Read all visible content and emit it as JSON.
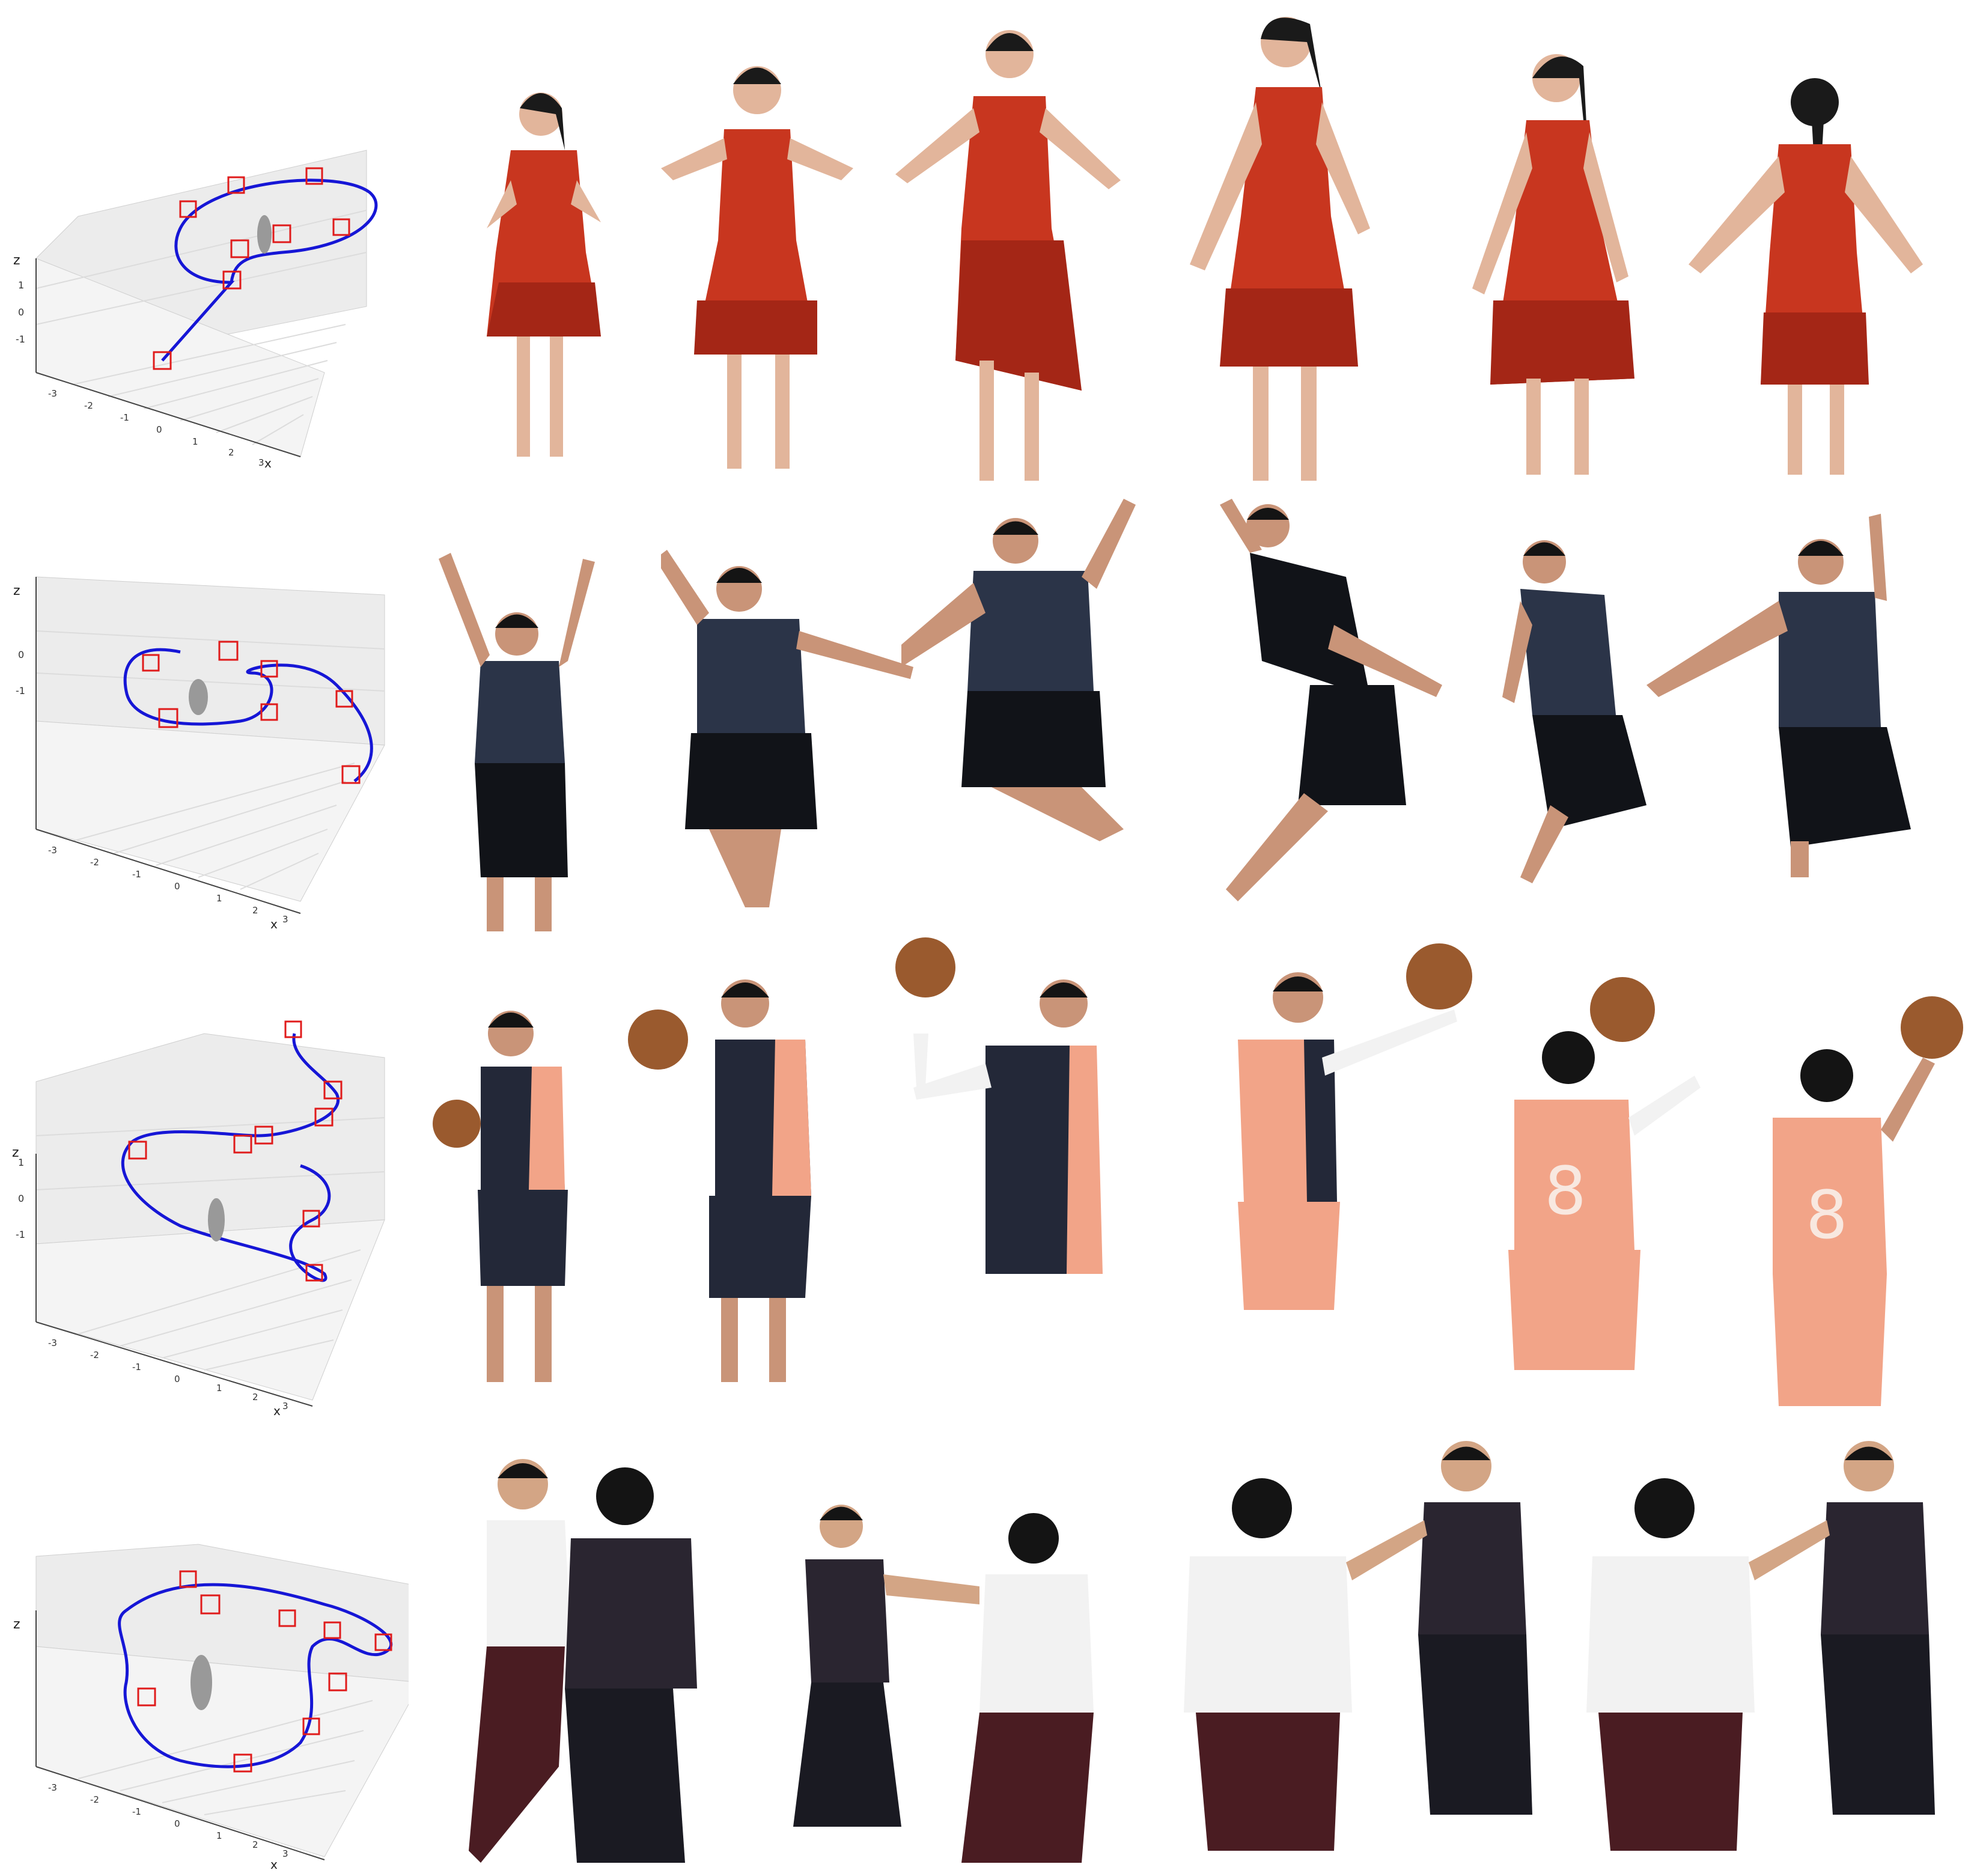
{
  "figure": {
    "rows": [
      {
        "id": "row-1",
        "subject": "woman in red dress dancing",
        "plot": {
          "axis_x_label": "x",
          "axis_z_label": "z",
          "z_ticks": [
            "1",
            "0",
            "-1"
          ],
          "x_ticks": [
            "-3",
            "-2",
            "-1",
            "0",
            "1",
            "2",
            "3"
          ]
        },
        "frame_count": 6,
        "colors": {
          "garment": "#c8361f",
          "garment_shade": "#a42616",
          "skin": "#e2b59b",
          "hair": "#1a1a1a"
        }
      },
      {
        "id": "row-2",
        "subject": "man in dark jersey jumping",
        "plot": {
          "axis_x_label": "x",
          "axis_z_label": "z",
          "z_ticks": [
            "0",
            "-1"
          ],
          "x_ticks": [
            "-3",
            "-2",
            "-1",
            "0",
            "1",
            "2",
            "3"
          ]
        },
        "frame_count": 6,
        "colors": {
          "garment": "#2b3448",
          "garment_shade": "#111318",
          "skin": "#c99478",
          "hair": "#141414"
        }
      },
      {
        "id": "row-3",
        "subject": "man spinning a basketball",
        "plot": {
          "axis_x_label": "x",
          "axis_z_label": "z",
          "z_ticks": [
            "1",
            "0",
            "-1"
          ],
          "x_ticks": [
            "-3",
            "-2",
            "-1",
            "0",
            "1",
            "2",
            "3"
          ]
        },
        "frame_count": 6,
        "colors": {
          "garment": "#232838",
          "garment_shade": "#f2a488",
          "skin": "#c99478",
          "hair": "#141414",
          "ball": "#9a5a2e"
        }
      },
      {
        "id": "row-4",
        "subject": "two men sparring",
        "plot": {
          "axis_x_label": "x",
          "axis_z_label": "z",
          "z_ticks": [],
          "x_ticks": [
            "-3",
            "-2",
            "-1",
            "0",
            "1",
            "2",
            "3"
          ]
        },
        "frame_count": 4,
        "colors": {
          "garment": "#f2f2f2",
          "garment_shade": "#2a2530",
          "skin": "#d3a585",
          "hair": "#141414",
          "pants": "#4a1c22"
        }
      }
    ],
    "jersey_number": "8",
    "palette": {
      "trajectory": "#1616d6",
      "camera": "#e01b1b",
      "plot_bg": "#ececec",
      "grid": "#d6d6d6"
    }
  }
}
